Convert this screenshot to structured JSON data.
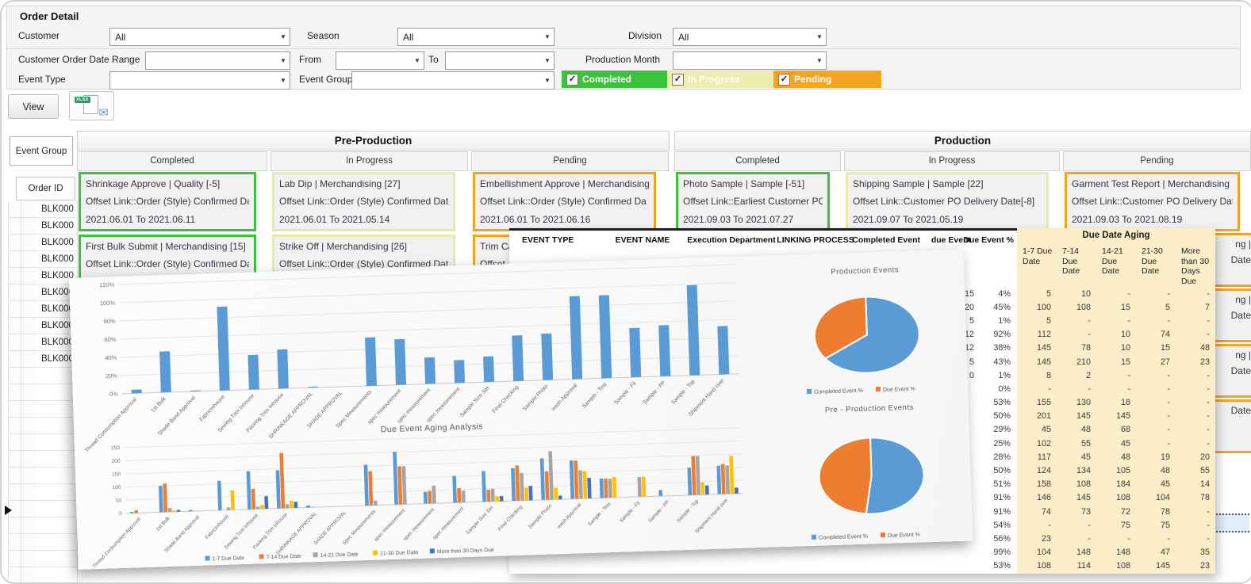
{
  "filters": {
    "panel_title": "Order Detail",
    "customer": {
      "label": "Customer",
      "value": "All"
    },
    "season": {
      "label": "Season",
      "value": "All"
    },
    "division": {
      "label": "Division",
      "value": "All"
    },
    "order_date_range": {
      "label": "Customer Order Date Range",
      "value": ""
    },
    "from": {
      "label": "From",
      "value": ""
    },
    "to": {
      "label": "To",
      "value": ""
    },
    "production_month": {
      "label": "Production Month",
      "value": ""
    },
    "event_type": {
      "label": "Event Type",
      "value": ""
    },
    "event_group": {
      "label": "Event Group",
      "value": ""
    },
    "status_toggles": [
      {
        "label": "Completed",
        "checked": true,
        "color": "#3cc33c"
      },
      {
        "label": "In Progress",
        "checked": true,
        "color": "#efecb0"
      },
      {
        "label": "Pending",
        "checked": true,
        "color": "#f4a41e"
      }
    ],
    "check_glyph": "✓"
  },
  "toolbar": {
    "view_label": "View",
    "export_badge": "XLSX",
    "export_icon": "xlsx-file-mail-icon",
    "mail_glyph": "✉"
  },
  "board": {
    "left": {
      "event_group_label": "Event Group",
      "order_id_label": "Order ID",
      "order_ids": [
        "BLK000",
        "BLK000",
        "BLK000",
        "BLK000",
        "BLK000",
        "BLK000",
        "BLK000",
        "BLK000",
        "BLK000",
        "BLK000"
      ]
    },
    "groups": [
      {
        "title": "Pre-Production",
        "columns": [
          {
            "header": "Completed",
            "state": "completed",
            "cards": [
              {
                "lines": [
                  "Shrinkage Approve | Quality [-5]",
                  "Offset Link::Order (Style) Confirmed Date",
                  "2021.06.01 To 2021.06.11"
                ]
              },
              {
                "lines": [
                  "First Bulk Submit | Merchandising  [15]",
                  "Offset Link::Order (Style) Confirmed Date",
                  ""
                ]
              }
            ]
          },
          {
            "header": "In Progress",
            "state": "inprogress",
            "cards": [
              {
                "lines": [
                  "Lab Dip | Merchandising  [27]",
                  "Offset Link::Order (Style) Confirmed Date[",
                  "2021.06.01 To 2021.05.14"
                ]
              },
              {
                "lines": [
                  "Strike Off | Merchandising  [26]",
                  "Offset Link::Order (Style) Confirmed Date[",
                  ""
                ]
              }
            ]
          },
          {
            "header": "Pending",
            "state": "pending",
            "cards": [
              {
                "lines": [
                  "Embellishment Approve | Merchandising",
                  "Offset Link::Order (Style) Confirmed Da",
                  "2021.06.01 To 2021.06.16"
                ]
              },
              {
                "lines": [
                  "Trim Ca",
                  "Offset",
                  ""
                ]
              }
            ]
          }
        ]
      },
      {
        "title": "Production",
        "columns": [
          {
            "header": "Completed",
            "state": "completed",
            "cards": [
              {
                "lines": [
                  "Photo Sample | Sample  [-51]",
                  "Offset Link::Earliest Customer PO D",
                  "2021.09.03 To 2021.07.27"
                ]
              }
            ]
          },
          {
            "header": "In Progress",
            "state": "inprogress",
            "cards": [
              {
                "lines": [
                  "Shipping Sample | Sample  [22]",
                  "Offset Link::Customer PO Delivery Date[-8]",
                  "2021.09.07 To 2021.05.19"
                ]
              }
            ]
          },
          {
            "header": "Pending",
            "state": "pending",
            "cards": [
              {
                "lines": [
                  "Garment Test Report | Merchandising",
                  "Offset Link::Customer PO Delivery Date",
                  "2021.09.03 To 2021.08.19"
                ]
              }
            ],
            "fragments": [
              [
                "ng |",
                "Date"
              ],
              [
                "ng |",
                "Date"
              ],
              [
                "ng |",
                "Date"
              ],
              [
                "",
                "Date"
              ]
            ]
          }
        ]
      }
    ]
  },
  "event_table": {
    "columns": [
      "EVENT TYPE",
      "EVENT NAME",
      "Execution Department",
      "LINKING PROCESS",
      "Completed Event",
      "due Event",
      "Due Event %"
    ],
    "due_event_visible": [
      "15",
      "420",
      "5",
      "312",
      "12",
      "5",
      "0",
      "",
      "",
      "",
      "",
      "",
      "",
      "",
      "",
      "",
      "",
      "",
      "",
      "",
      ""
    ],
    "due_event_pct": [
      "4%",
      "45%",
      "1%",
      "92%",
      "38%",
      "43%",
      "1%",
      "0%",
      "53%",
      "50%",
      "29%",
      "25%",
      "28%",
      "50%",
      "51%",
      "91%",
      "91%",
      "54%",
      "56%",
      "99%",
      "53%"
    ]
  },
  "aging_table": {
    "title": "Due Date Aging",
    "columns": [
      "1-7  Due Date",
      "7-14 Due Date",
      "14-21 Due Date",
      "21-30 Due Date",
      "More than 30 Days Due"
    ],
    "rows": [
      [
        "5",
        "10",
        "-",
        "-",
        "-"
      ],
      [
        "100",
        "108",
        "15",
        "5",
        "7"
      ],
      [
        "5",
        "-",
        "-",
        "-",
        "-"
      ],
      [
        "112",
        "-",
        "10",
        "74",
        "-"
      ],
      [
        "145",
        "78",
        "10",
        "15",
        "48"
      ],
      [
        "145",
        "210",
        "15",
        "27",
        "23"
      ],
      [
        "8",
        "2",
        "-",
        "-",
        "-"
      ],
      [
        "-",
        "-",
        "-",
        "-",
        "-"
      ],
      [
        "155",
        "130",
        "18",
        "-",
        "-"
      ],
      [
        "201",
        "145",
        "145",
        "-",
        "-"
      ],
      [
        "45",
        "48",
        "68",
        "-",
        "-"
      ],
      [
        "102",
        "55",
        "45",
        "-",
        "-"
      ],
      [
        "117",
        "45",
        "48",
        "19",
        "20"
      ],
      [
        "124",
        "134",
        "105",
        "48",
        "55"
      ],
      [
        "158",
        "108",
        "184",
        "45",
        "14"
      ],
      [
        "146",
        "145",
        "108",
        "104",
        "78"
      ],
      [
        "74",
        "73",
        "72",
        "78",
        "-"
      ],
      [
        "-",
        "-",
        "75",
        "75",
        "-"
      ],
      [
        "23",
        "-",
        "-",
        "-",
        "-"
      ],
      [
        "104",
        "148",
        "148",
        "47",
        "35"
      ],
      [
        "108",
        "114",
        "108",
        "145",
        "23"
      ]
    ]
  },
  "chart_data": [
    {
      "type": "bar",
      "title": "",
      "ylabel": "Due Event %",
      "ylim": [
        0,
        120
      ],
      "ytick_step": 20,
      "ytick_suffix": "%",
      "color": "#5b9bd5",
      "grid": true,
      "categories": [
        "Thread Consumption Approval",
        "1st Bulk",
        "Shade Band Approval",
        "FabricInhouse",
        "Sewing Trim Inhouse",
        "Packing Trim Inhouse",
        "SHRINKAGE APPROVAL",
        "SHADE APPROVAL",
        "Spec Measurements",
        "spec measurement",
        "spec measurement",
        "spec measurement",
        "Sample Size Set",
        "Final Checking",
        "Sample Photo",
        "wash Approval",
        "Sample - Test",
        "Sample - Fit",
        "Sample - PP",
        "Sample - Top",
        "Shipment Hand over"
      ],
      "values": [
        4,
        45,
        1,
        92,
        38,
        43,
        1,
        0,
        53,
        50,
        29,
        25,
        28,
        50,
        51,
        91,
        91,
        54,
        56,
        99,
        53
      ]
    },
    {
      "type": "pie",
      "title": "Production Events",
      "legend_position": "bottom",
      "labels": [
        "Completed Event %",
        "Due Event %"
      ],
      "values": [
        65,
        35
      ],
      "colors": [
        "#5b9bd5",
        "#ed7d31"
      ]
    },
    {
      "type": "bar",
      "title": "Due Event Aging Analysis",
      "ylim": [
        0,
        250
      ],
      "ytick_step": 50,
      "ytick_suffix": "",
      "grid": true,
      "legend_position": "bottom",
      "categories": [
        "Thread Consumption Approval",
        "1st Bulk",
        "Shade Band Approval",
        "FabricInhouse",
        "Sewing Trim Inhouse",
        "Packing Trim Inhouse",
        "SHRINKAGE APPROVAL",
        "SHADE APPROVAL",
        "Spec Measurements",
        "spec measurement",
        "spec measurement",
        "spec measurement",
        "Sample Size Set",
        "Final Checking",
        "Sample Photo",
        "wash Approval",
        "Sample - Test",
        "Sample - Fit",
        "Sample - PP",
        "Sample - Top",
        "Shipment Hand over"
      ],
      "series": [
        {
          "name": "1-7  Due Date",
          "color": "#5b9bd5",
          "values": [
            5,
            100,
            5,
            112,
            145,
            145,
            8,
            0,
            155,
            201,
            45,
            102,
            117,
            124,
            158,
            146,
            74,
            0,
            23,
            104,
            108
          ]
        },
        {
          "name": "7-14 Due Date",
          "color": "#ed7d31",
          "values": [
            10,
            108,
            0,
            0,
            78,
            210,
            2,
            0,
            130,
            145,
            48,
            55,
            45,
            134,
            108,
            145,
            73,
            0,
            0,
            148,
            114
          ]
        },
        {
          "name": "14-21 Due  Date",
          "color": "#a5a5a5",
          "values": [
            0,
            15,
            0,
            10,
            10,
            15,
            0,
            0,
            18,
            145,
            68,
            45,
            48,
            105,
            184,
            108,
            72,
            75,
            0,
            148,
            108
          ]
        },
        {
          "name": "21-30 Due Date",
          "color": "#ffc000",
          "values": [
            0,
            5,
            0,
            74,
            15,
            27,
            0,
            0,
            0,
            0,
            0,
            0,
            19,
            48,
            45,
            104,
            78,
            75,
            0,
            47,
            145
          ]
        },
        {
          "name": "More than 30 Days Due",
          "color": "#4472c4",
          "values": [
            0,
            7,
            0,
            0,
            48,
            23,
            0,
            0,
            0,
            0,
            0,
            0,
            20,
            55,
            14,
            78,
            0,
            0,
            0,
            35,
            23
          ]
        }
      ]
    },
    {
      "type": "pie",
      "title": "Pre - Production Events",
      "legend_position": "bottom",
      "labels": [
        "Completed Event %",
        "Due Event %"
      ],
      "values": [
        52,
        48
      ],
      "colors": [
        "#5b9bd5",
        "#ed7d31"
      ]
    }
  ]
}
